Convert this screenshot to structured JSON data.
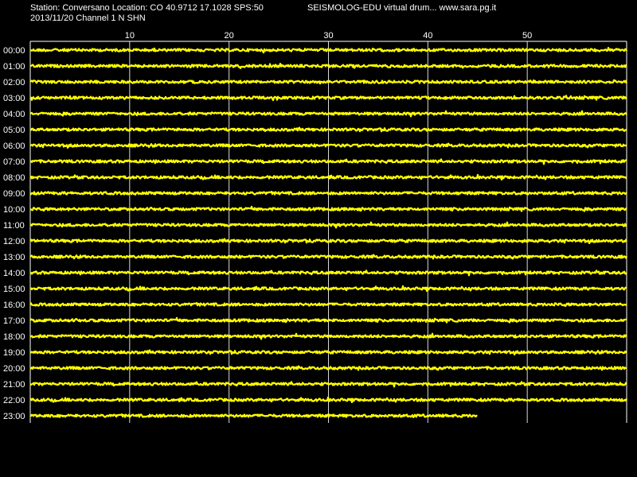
{
  "header": {
    "station_line": "Station: Conversano Location: CO 40.9712 17.1028 SPS:50",
    "date_channel_line": "2013/11/20  Channel 1 N SHN",
    "app_credit": "SEISMOLOG-EDU virtual drum... www.sara.pg.it"
  },
  "colors": {
    "background": "#000000",
    "trace": "#ffff00",
    "grid": "#ffffff",
    "text": "#ffffff"
  },
  "chart_data": {
    "type": "line",
    "title": "",
    "xlabel": "",
    "ylabel": "",
    "x_unit": "minutes",
    "xlim": [
      0,
      60
    ],
    "x_ticks": [
      10,
      20,
      30,
      40,
      50
    ],
    "grid": true,
    "rows": [
      {
        "label": "00:00",
        "end_minute": 60
      },
      {
        "label": "01:00",
        "end_minute": 60
      },
      {
        "label": "02:00",
        "end_minute": 60
      },
      {
        "label": "03:00",
        "end_minute": 60
      },
      {
        "label": "04:00",
        "end_minute": 60
      },
      {
        "label": "05:00",
        "end_minute": 60
      },
      {
        "label": "06:00",
        "end_minute": 60
      },
      {
        "label": "07:00",
        "end_minute": 60
      },
      {
        "label": "08:00",
        "end_minute": 60
      },
      {
        "label": "09:00",
        "end_minute": 60
      },
      {
        "label": "10:00",
        "end_minute": 60
      },
      {
        "label": "11:00",
        "end_minute": 60
      },
      {
        "label": "12:00",
        "end_minute": 60
      },
      {
        "label": "13:00",
        "end_minute": 60
      },
      {
        "label": "14:00",
        "end_minute": 60
      },
      {
        "label": "15:00",
        "end_minute": 60
      },
      {
        "label": "16:00",
        "end_minute": 60
      },
      {
        "label": "17:00",
        "end_minute": 60
      },
      {
        "label": "18:00",
        "end_minute": 60
      },
      {
        "label": "19:00",
        "end_minute": 60
      },
      {
        "label": "20:00",
        "end_minute": 60
      },
      {
        "label": "21:00",
        "end_minute": 60
      },
      {
        "label": "22:00",
        "end_minute": 60
      },
      {
        "label": "23:00",
        "end_minute": 45
      }
    ]
  }
}
